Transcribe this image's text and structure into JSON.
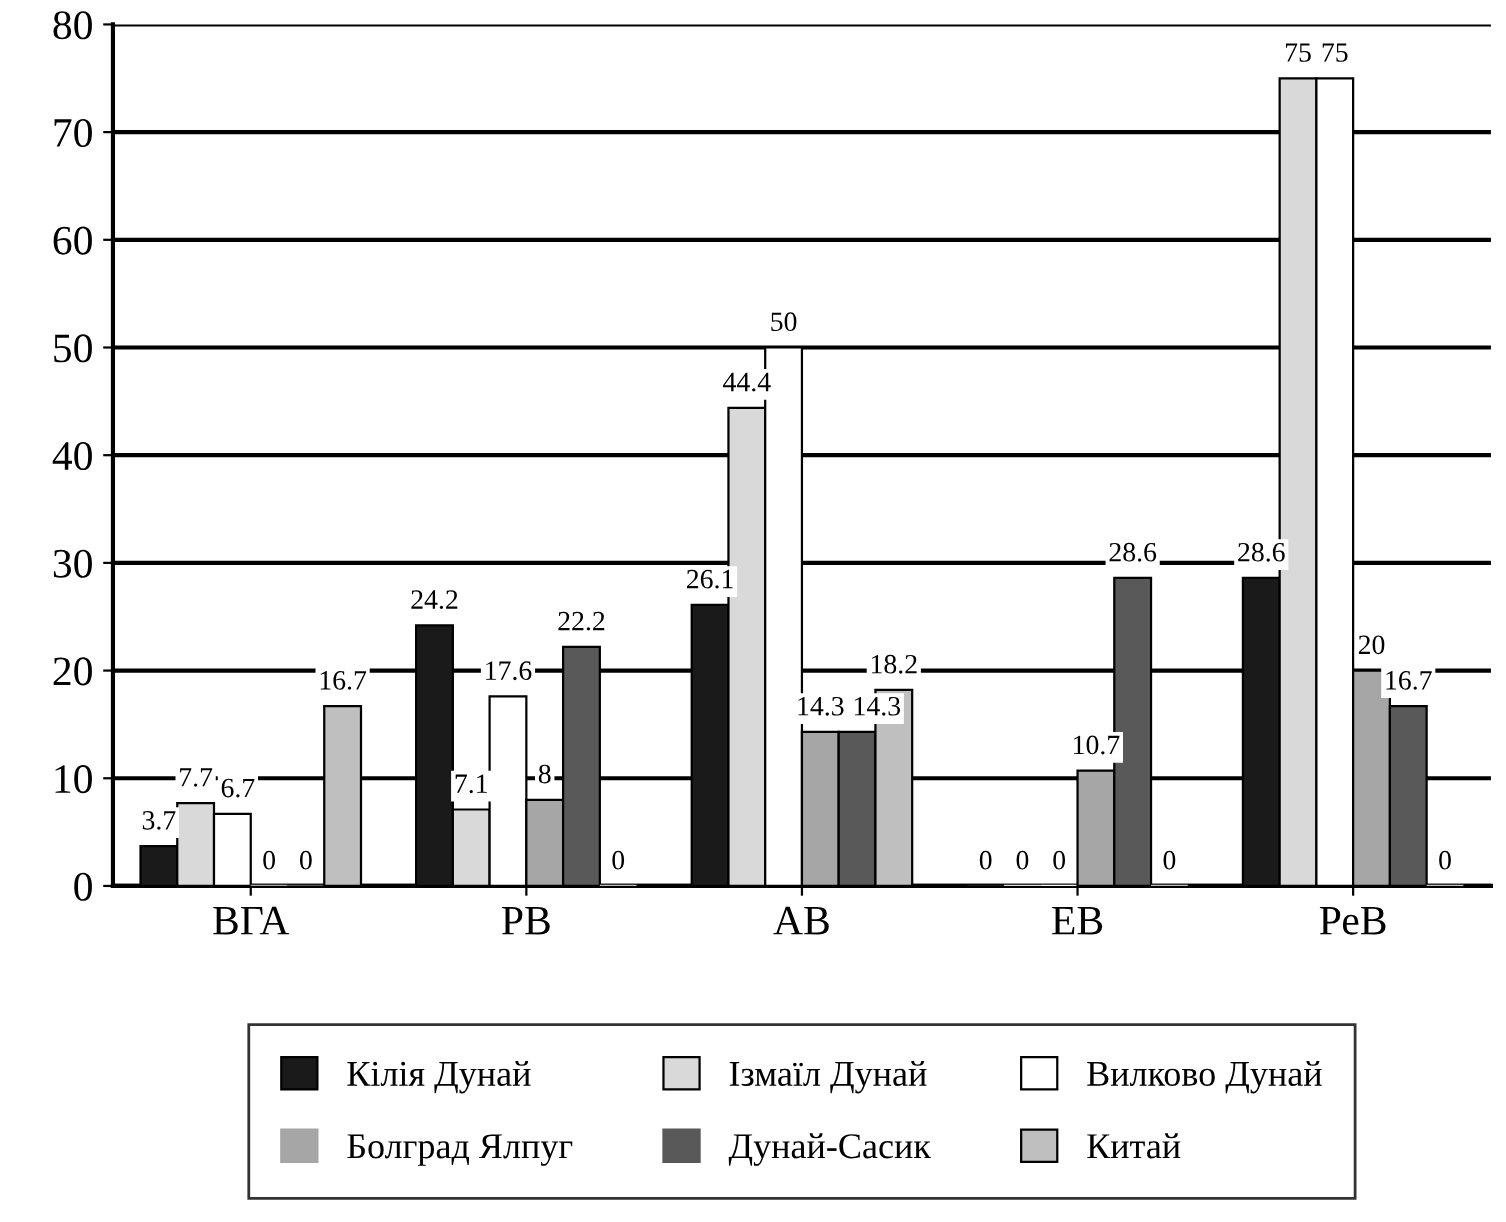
{
  "chart_data": {
    "type": "bar",
    "categories": [
      "ВГА",
      "РВ",
      "АВ",
      "ЕВ",
      "РеВ"
    ],
    "series": [
      {
        "name": "Кілія Дунай",
        "color": "#1a1a1a",
        "values": [
          3.7,
          24.2,
          26.1,
          0,
          28.6
        ]
      },
      {
        "name": "Ізмаїл Дунай",
        "color": "#d9d9d9",
        "values": [
          7.7,
          7.1,
          44.4,
          0,
          75
        ]
      },
      {
        "name": "Вилково Дунай",
        "color": "#ffffff",
        "values": [
          6.7,
          17.6,
          50,
          0,
          75
        ]
      },
      {
        "name": "Болград Ялпуг",
        "color": "#a6a6a6",
        "values": [
          0,
          8,
          14.3,
          10.7,
          20
        ]
      },
      {
        "name": "Дунай-Сасик",
        "color": "#595959",
        "values": [
          0,
          22.2,
          14.3,
          28.6,
          16.7
        ]
      },
      {
        "name": "Китай",
        "color": "#bfbfbf",
        "values": [
          16.7,
          0,
          18.2,
          0,
          0
        ]
      }
    ],
    "ylim": [
      0,
      80
    ],
    "yticks": [
      0,
      10,
      20,
      30,
      40,
      50,
      60,
      70,
      80
    ],
    "grid": "y",
    "legend": "bottom",
    "data_labels": true
  }
}
